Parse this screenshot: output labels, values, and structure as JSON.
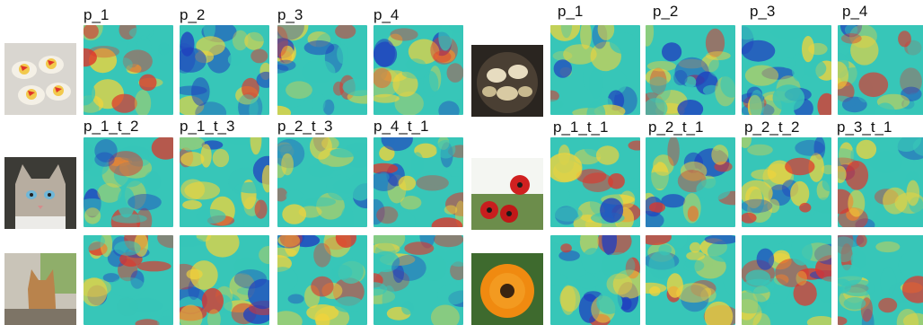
{
  "panels": {
    "left": {
      "rows": [
        {
          "labels": [
            "p_1",
            "p_2",
            "p_3",
            "p_4"
          ],
          "thumb_subject": "deviled eggs"
        },
        {
          "labels": [
            "p_1_t_2",
            "p_1_t_3",
            "p_2_t_3",
            "p_4_t_1"
          ],
          "thumb_subject": "tabby cat"
        },
        {
          "labels": [],
          "thumb_subject": "ginger cat by window"
        }
      ]
    },
    "right": {
      "rows": [
        {
          "labels": [
            "p_1",
            "p_2",
            "p_3",
            "p_4"
          ],
          "thumb_subject": "mussels in pan"
        },
        {
          "labels": [
            "p_1_t_1",
            "p_2_t_1",
            "p_2_t_2",
            "p_3_t_1"
          ],
          "thumb_subject": "red poppies"
        },
        {
          "labels": [],
          "thumb_subject": "orange calendula"
        }
      ]
    }
  },
  "colors": {
    "heat_low": "#1f3fbf",
    "heat_mid": "#37c6b8",
    "heat_high": "#f2d43a",
    "heat_peak": "#e0342a"
  }
}
